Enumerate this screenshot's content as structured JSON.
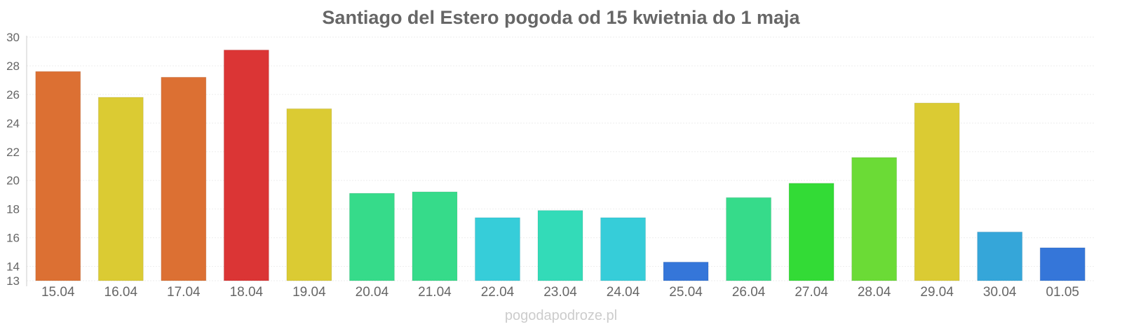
{
  "chart_data": {
    "type": "bar",
    "title": "Santiago del Estero pogoda od 15 kwietnia do 1 maja",
    "xlabel": "",
    "ylabel": "",
    "ylim": [
      13,
      30
    ],
    "yticks": [
      13,
      14,
      16,
      18,
      20,
      22,
      24,
      26,
      28,
      30
    ],
    "grid": true,
    "categories": [
      "15.04",
      "16.04",
      "17.04",
      "18.04",
      "19.04",
      "20.04",
      "21.04",
      "22.04",
      "23.04",
      "24.04",
      "25.04",
      "26.04",
      "27.04",
      "28.04",
      "29.04",
      "30.04",
      "01.05"
    ],
    "values": [
      27.6,
      25.8,
      27.2,
      29.1,
      25.0,
      19.1,
      19.2,
      17.4,
      17.9,
      17.4,
      14.3,
      18.8,
      19.8,
      21.6,
      25.4,
      16.4,
      15.3
    ],
    "colors": [
      "#dc7033",
      "#dbcb33",
      "#dc7033",
      "#db3535",
      "#dbcb33",
      "#36db8a",
      "#36db8a",
      "#36cdd9",
      "#33dbb8",
      "#36cdd9",
      "#3576d9",
      "#36db8a",
      "#33db36",
      "#6bdb36",
      "#dbcb33",
      "#35a6d9",
      "#3576d9"
    ]
  },
  "footer": "pogodapodroze.pl"
}
